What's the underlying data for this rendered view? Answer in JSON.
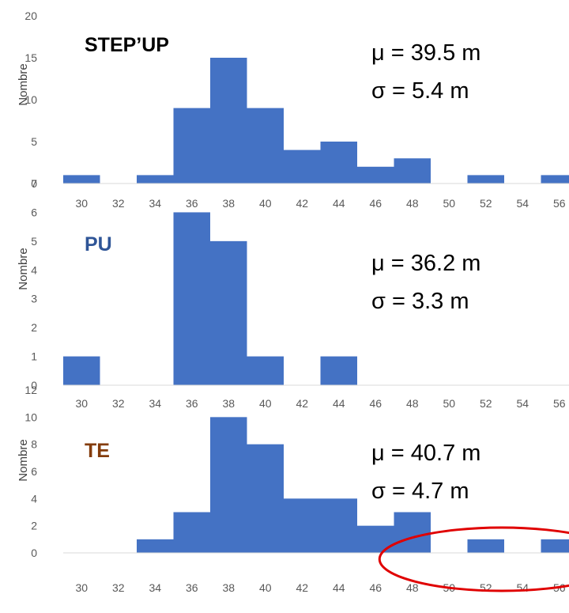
{
  "chart_data": [
    {
      "type": "bar",
      "title": "STEP’UP",
      "title_color": "#000000",
      "ylabel": "Nombre",
      "bar_color": "#4472C4",
      "ylim": [
        0,
        20
      ],
      "yticks": [
        0,
        5,
        10,
        15,
        20
      ],
      "xticks": [
        "30",
        "32",
        "34",
        "36",
        "38",
        "40",
        "42",
        "44",
        "46",
        "48",
        "50",
        "52",
        "54",
        "56"
      ],
      "bins": [
        {
          "from": 29,
          "to": 31,
          "value": 1
        },
        {
          "from": 33,
          "to": 35,
          "value": 1
        },
        {
          "from": 35,
          "to": 37,
          "value": 9
        },
        {
          "from": 37,
          "to": 39,
          "value": 15
        },
        {
          "from": 39,
          "to": 41,
          "value": 9
        },
        {
          "from": 41,
          "to": 43,
          "value": 4
        },
        {
          "from": 43,
          "to": 45,
          "value": 5
        },
        {
          "from": 45,
          "to": 47,
          "value": 2
        },
        {
          "from": 47,
          "to": 49,
          "value": 3
        },
        {
          "from": 51,
          "to": 53,
          "value": 1
        },
        {
          "from": 55,
          "to": 57,
          "value": 1
        }
      ],
      "annotations": [
        "μ = 39.5 m",
        "σ = 5.4 m"
      ]
    },
    {
      "type": "bar",
      "title": "PU",
      "title_color": "#2F5597",
      "ylabel": "Nombre",
      "bar_color": "#4472C4",
      "ylim": [
        0,
        7
      ],
      "yticks": [
        0,
        1,
        2,
        3,
        4,
        5,
        6,
        7
      ],
      "xticks": [
        "30",
        "32",
        "34",
        "36",
        "38",
        "40",
        "42",
        "44",
        "46",
        "48",
        "50",
        "52",
        "54",
        "56"
      ],
      "bins": [
        {
          "from": 29,
          "to": 31,
          "value": 1
        },
        {
          "from": 35,
          "to": 37,
          "value": 6
        },
        {
          "from": 37,
          "to": 39,
          "value": 5
        },
        {
          "from": 39,
          "to": 41,
          "value": 1
        },
        {
          "from": 43,
          "to": 45,
          "value": 1
        }
      ],
      "annotations": [
        "μ = 36.2 m",
        "σ = 3.3 m"
      ]
    },
    {
      "type": "bar",
      "title": "TE",
      "title_color": "#843C0C",
      "ylabel": "Nombre",
      "bar_color": "#4472C4",
      "ylim": [
        0,
        12
      ],
      "yticks": [
        0,
        2,
        4,
        6,
        8,
        10,
        12
      ],
      "xticks": [
        "30",
        "32",
        "34",
        "36",
        "38",
        "40",
        "42",
        "44",
        "46",
        "48",
        "50",
        "52",
        "54",
        "56"
      ],
      "bins": [
        {
          "from": 33,
          "to": 35,
          "value": 1
        },
        {
          "from": 35,
          "to": 37,
          "value": 3
        },
        {
          "from": 37,
          "to": 39,
          "value": 10
        },
        {
          "from": 39,
          "to": 41,
          "value": 8
        },
        {
          "from": 41,
          "to": 43,
          "value": 4
        },
        {
          "from": 43,
          "to": 45,
          "value": 4
        },
        {
          "from": 45,
          "to": 47,
          "value": 2
        },
        {
          "from": 47,
          "to": 49,
          "value": 3
        },
        {
          "from": 51,
          "to": 53,
          "value": 1
        },
        {
          "from": 55,
          "to": 57,
          "value": 1
        }
      ],
      "annotations": [
        "μ = 40.7 m",
        "σ = 4.7 m"
      ],
      "highlight": {
        "shape": "ellipse",
        "color": "#E00000",
        "x_from": 46,
        "x_to": 58
      }
    }
  ]
}
